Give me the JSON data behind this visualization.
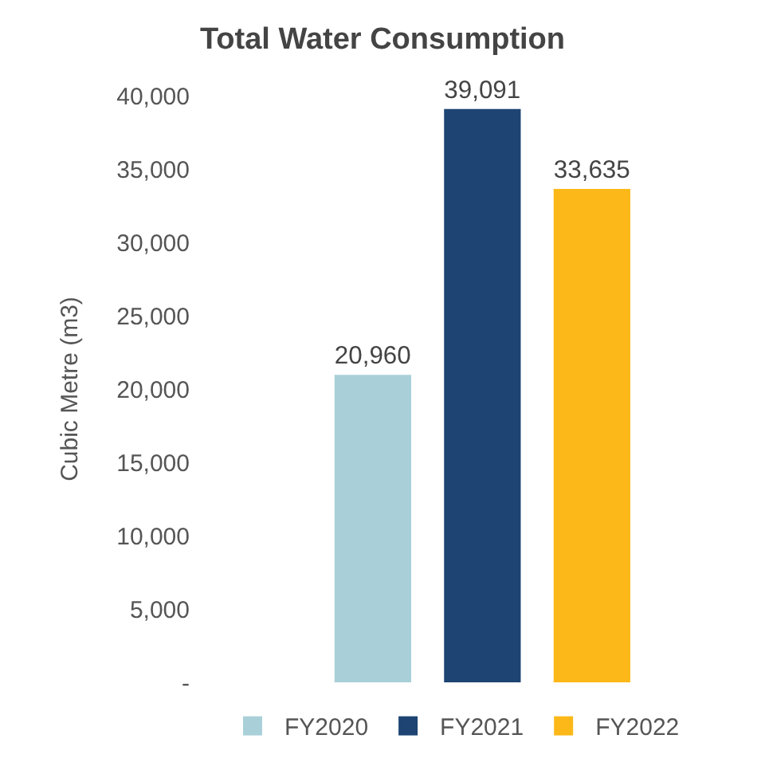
{
  "chart_data": {
    "type": "bar",
    "title": "Total Water Consumption",
    "ylabel": "Cubic Metre (m3)",
    "categories": [
      null
    ],
    "series": [
      {
        "name": "FY2020",
        "color": "#a9d0d8",
        "values": [
          20960
        ],
        "value_labels": [
          "20,960"
        ]
      },
      {
        "name": "FY2021",
        "color": "#1d4473",
        "values": [
          39091
        ],
        "value_labels": [
          "39,091"
        ]
      },
      {
        "name": "FY2022",
        "color": "#fbb818",
        "values": [
          33635
        ],
        "value_labels": [
          "33,635"
        ]
      }
    ],
    "ylim": [
      0,
      40000
    ],
    "yticks": [
      {
        "value": 0,
        "label": "-"
      },
      {
        "value": 5000,
        "label": "5,000"
      },
      {
        "value": 10000,
        "label": "10,000"
      },
      {
        "value": 15000,
        "label": "15,000"
      },
      {
        "value": 20000,
        "label": "20,000"
      },
      {
        "value": 25000,
        "label": "25,000"
      },
      {
        "value": 30000,
        "label": "30,000"
      },
      {
        "value": 35000,
        "label": "35,000"
      },
      {
        "value": 40000,
        "label": "40,000"
      }
    ],
    "grid": false,
    "legend": "bottom"
  }
}
